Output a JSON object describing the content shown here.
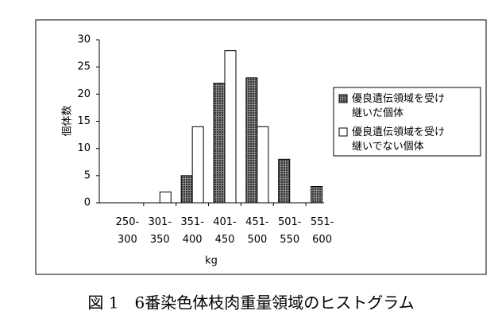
{
  "chart_data": {
    "type": "bar",
    "caption": "図 1　6番染色体枝肉重量領域のヒストグラム",
    "y_label": "個体数",
    "x_label": "kg",
    "categories": [
      "250-\n300",
      "301-\n350",
      "351-\n400",
      "401-\n450",
      "451-\n500",
      "501-\n550",
      "551-\n600"
    ],
    "series": [
      {
        "name": "優良遺伝領域を受け\n継いだ個体",
        "color": "#333333",
        "hatched": true,
        "values": [
          0,
          0,
          5,
          22,
          23,
          8,
          3
        ]
      },
      {
        "name": "優良遺伝領域を受け\n継いでない個体",
        "color": "#ffffff",
        "hatched": false,
        "values": [
          0,
          2,
          14,
          28,
          14,
          0,
          0
        ]
      }
    ],
    "ylim": [
      0,
      30
    ],
    "yticks": [
      0,
      5,
      10,
      15,
      20,
      25,
      30
    ],
    "grid": false,
    "legend": "right"
  }
}
